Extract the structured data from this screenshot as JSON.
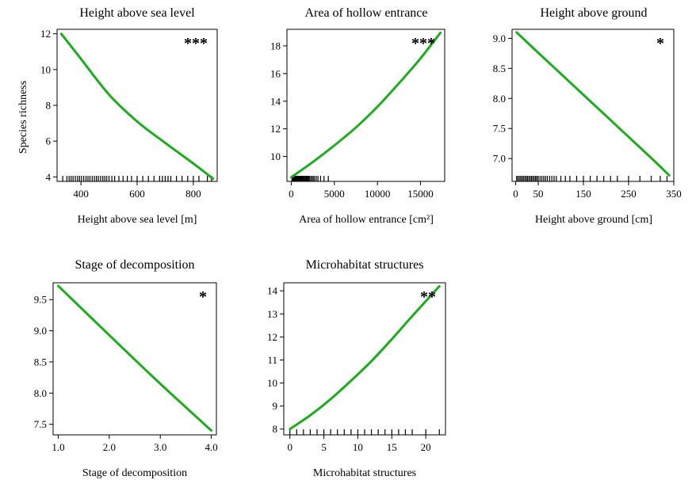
{
  "y_axis_label": "Species richness",
  "chart_data": [
    {
      "type": "line",
      "title": "Height above sea level",
      "xlabel": "Height above sea level [m]",
      "ylabel": "Species richness",
      "significance": "***",
      "xlim": [
        315,
        885
      ],
      "ylim": [
        3.75,
        12.25
      ],
      "xticks": [
        400,
        600,
        800
      ],
      "yticks": [
        4,
        6,
        8,
        10,
        12
      ],
      "xticklabels": [
        "400",
        "600",
        "800"
      ],
      "yticklabels": [
        "4",
        "6",
        "8",
        "10",
        "12"
      ],
      "x": [
        330,
        400,
        500,
        600,
        700,
        800,
        870
      ],
      "y": [
        12.0,
        10.6,
        8.6,
        7.1,
        5.9,
        4.75,
        3.9
      ],
      "rug": [
        335,
        350,
        358,
        365,
        372,
        380,
        388,
        395,
        402,
        410,
        418,
        425,
        432,
        440,
        448,
        455,
        462,
        470,
        478,
        485,
        492,
        500,
        510,
        520,
        535,
        550,
        565,
        580,
        600,
        620,
        640,
        660,
        680,
        690,
        700,
        710,
        720,
        740,
        760,
        780,
        800,
        820,
        850,
        865
      ],
      "line_color": "#1faa1f"
    },
    {
      "type": "line",
      "title": "Area of hollow entrance",
      "xlabel": "Area of hollow entrance [cm²]",
      "ylabel": "",
      "significance": "***",
      "xlim": [
        -500,
        17800
      ],
      "ylim": [
        8.2,
        19.2
      ],
      "xticks": [
        0,
        5000,
        10000,
        15000
      ],
      "yticks": [
        10,
        12,
        14,
        16,
        18
      ],
      "xticklabels": [
        "0",
        "5000",
        "10000",
        "15000"
      ],
      "yticklabels": [
        "10",
        "12",
        "14",
        "16",
        "18"
      ],
      "x": [
        0,
        2500,
        5000,
        7500,
        10000,
        12500,
        15000,
        17300
      ],
      "y": [
        8.5,
        9.6,
        10.8,
        12.1,
        13.6,
        15.3,
        17.1,
        18.95
      ],
      "rug": [
        80,
        160,
        240,
        320,
        400,
        480,
        560,
        640,
        720,
        800,
        880,
        960,
        1040,
        1120,
        1200,
        1300,
        1400,
        1500,
        1600,
        1700,
        1800,
        1900,
        2000,
        2100,
        2250,
        2400,
        2550,
        2700,
        2900,
        3100,
        3400,
        3800,
        4300
      ],
      "line_color": "#1faa1f"
    },
    {
      "type": "line",
      "title": "Height above ground",
      "xlabel": "Height above ground [cm]",
      "ylabel": "",
      "significance": "*",
      "xlim": [
        -8,
        350
      ],
      "ylim": [
        6.62,
        9.15
      ],
      "xticks": [
        0,
        50,
        150,
        250,
        350
      ],
      "yticks": [
        7.0,
        7.5,
        8.0,
        8.5,
        9.0
      ],
      "xticklabels": [
        "0",
        "50",
        "150",
        "250",
        "350"
      ],
      "yticklabels": [
        "7.0",
        "7.5",
        "8.0",
        "8.5",
        "9.0"
      ],
      "x": [
        2,
        50,
        100,
        150,
        200,
        250,
        300,
        340
      ],
      "y": [
        9.1,
        8.76,
        8.41,
        8.06,
        7.71,
        7.36,
        7.01,
        6.72
      ],
      "rug": [
        2,
        5,
        8,
        11,
        14,
        17,
        20,
        23,
        26,
        29,
        32,
        35,
        38,
        41,
        44,
        47,
        50,
        54,
        58,
        62,
        66,
        70,
        75,
        80,
        85,
        90,
        100,
        110,
        120,
        135,
        150,
        165,
        180,
        195,
        210,
        225,
        250,
        275,
        300,
        320,
        335
      ],
      "line_color": "#1faa1f"
    },
    {
      "type": "line",
      "title": "Stage of decomposition",
      "xlabel": "Stage of decomposition",
      "ylabel": "",
      "significance": "*",
      "xlim": [
        0.9,
        4.1
      ],
      "ylim": [
        7.33,
        9.77
      ],
      "xticks": [
        1,
        2,
        3,
        4
      ],
      "yticks": [
        7.5,
        8.0,
        8.5,
        9.0,
        9.5
      ],
      "xticklabels": [
        "1.0",
        "2.0",
        "3.0",
        "4.0"
      ],
      "yticklabels": [
        "7.5",
        "8.0",
        "8.5",
        "9.0",
        "9.5"
      ],
      "x": [
        1,
        2,
        3,
        4
      ],
      "y": [
        9.72,
        8.93,
        8.15,
        7.4
      ],
      "rug": [],
      "line_color": "#1faa1f"
    },
    {
      "type": "line",
      "title": "Microhabitat structures",
      "xlabel": "Microhabitat structures",
      "ylabel": "",
      "significance": "**",
      "xlim": [
        -0.9,
        22.9
      ],
      "ylim": [
        7.75,
        14.35
      ],
      "xticks": [
        0,
        5,
        10,
        15,
        20
      ],
      "yticks": [
        8,
        9,
        10,
        11,
        12,
        13,
        14
      ],
      "xticklabels": [
        "0",
        "5",
        "10",
        "15",
        "20"
      ],
      "yticklabels": [
        "8",
        "9",
        "10",
        "11",
        "12",
        "13",
        "14"
      ],
      "x": [
        0,
        3,
        6,
        9,
        12,
        15,
        18,
        22
      ],
      "y": [
        8.0,
        8.6,
        9.3,
        10.1,
        10.95,
        11.9,
        12.9,
        14.2
      ],
      "rug": [
        0,
        1,
        2,
        3,
        4,
        5,
        6,
        7,
        8,
        9,
        10,
        11,
        12,
        13,
        14,
        15,
        16,
        17,
        18,
        20,
        22
      ],
      "line_color": "#1faa1f"
    }
  ]
}
